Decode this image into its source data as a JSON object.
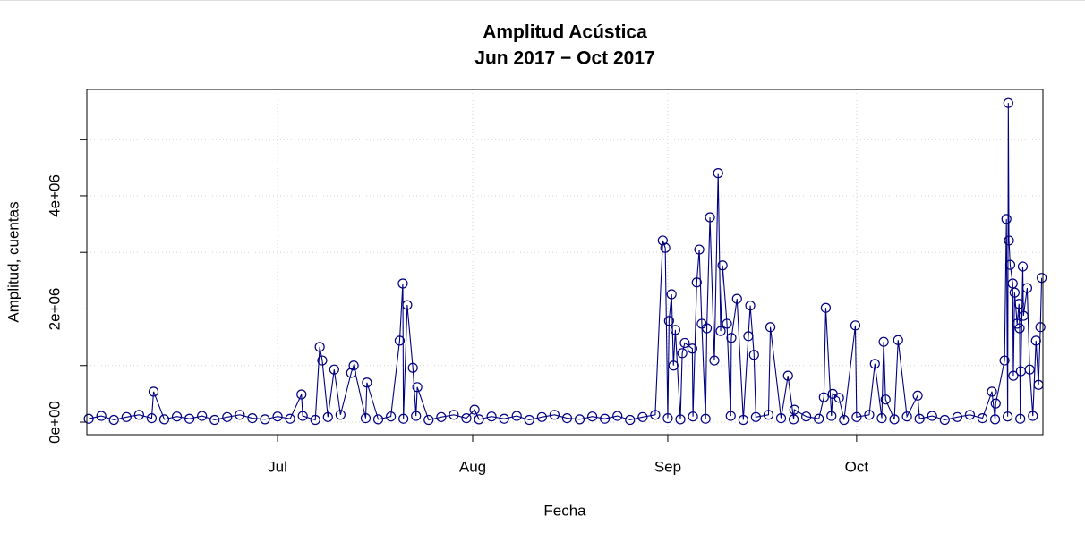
{
  "chart_data": {
    "type": "line",
    "title": "Amplitud Acústica",
    "subtitle": "Jun 2017 − Oct 2017",
    "xlabel": "Fecha",
    "ylabel": "Amplitud, cuentas",
    "color": "#000080",
    "markers": true,
    "grid": true,
    "xlim": [
      -0.3,
      151.6
    ],
    "xticks": [
      {
        "value": 30,
        "label": "Jul"
      },
      {
        "value": 61,
        "label": "Aug"
      },
      {
        "value": 92,
        "label": "Sep"
      },
      {
        "value": 122,
        "label": "Oct"
      }
    ],
    "ylim": [
      -221000,
      5880000
    ],
    "yticks": [
      {
        "value": 0,
        "label": "0e+00"
      },
      {
        "value": 2000000,
        "label": "2e+06"
      },
      {
        "value": 4000000,
        "label": "4e+06"
      }
    ],
    "minor_yticks": [
      1000000,
      3000000,
      5000000
    ],
    "series": [
      {
        "name": "Amplitud",
        "color": "#000080",
        "x": [
          0,
          2,
          4,
          6,
          8,
          10,
          10.3,
          12,
          14,
          16,
          18,
          20,
          22,
          24,
          26,
          28,
          30,
          32,
          33.8,
          34,
          36,
          36.7,
          37.1,
          38,
          39,
          40,
          41.7,
          42.1,
          44,
          44.2,
          46,
          48,
          49.4,
          49.9,
          50,
          50.6,
          51.5,
          52,
          52.2,
          54,
          56,
          58,
          60,
          61.3,
          62,
          64,
          66,
          68,
          70,
          72,
          74,
          76,
          78,
          80,
          82,
          84,
          86,
          88,
          90,
          91.2,
          91.6,
          92,
          92.2,
          92.6,
          92.9,
          93.2,
          94,
          94.3,
          94.7,
          95.9,
          96,
          96.6,
          97,
          97.4,
          98,
          98.2,
          98.7,
          99.4,
          100,
          100.4,
          100.7,
          101.4,
          102,
          102.1,
          103,
          104,
          104.8,
          105.1,
          105.7,
          106,
          108,
          108.3,
          110,
          111.1,
          112,
          112.1,
          114,
          116,
          116.8,
          117.1,
          118,
          118.2,
          119.2,
          120,
          121.8,
          122,
          124,
          124.9,
          126,
          126.3,
          126.6,
          128,
          128.6,
          130,
          131.7,
          132,
          134,
          136,
          138,
          140,
          142,
          143.5,
          144,
          144.1,
          145.5,
          145.8,
          146,
          146.1,
          146.2,
          146.4,
          146.8,
          146.9,
          147.1,
          147.5,
          147.8,
          147.9,
          148,
          148.1,
          148.4,
          148.5,
          149.1,
          149.5,
          150,
          150.5,
          150.9,
          151.2,
          151.4
        ],
        "values": [
          60000,
          110000,
          40000,
          90000,
          130000,
          70000,
          540000,
          50000,
          100000,
          60000,
          110000,
          40000,
          90000,
          130000,
          70000,
          50000,
          100000,
          60000,
          490000,
          110000,
          40000,
          1330000,
          1090000,
          90000,
          930000,
          130000,
          870000,
          1000000,
          70000,
          700000,
          50000,
          100000,
          1440000,
          2450000,
          60000,
          2070000,
          960000,
          110000,
          620000,
          40000,
          90000,
          130000,
          70000,
          220000,
          50000,
          100000,
          60000,
          110000,
          40000,
          90000,
          130000,
          70000,
          50000,
          100000,
          60000,
          110000,
          40000,
          90000,
          130000,
          3210000,
          3080000,
          70000,
          1790000,
          2260000,
          1000000,
          1630000,
          50000,
          1220000,
          1400000,
          1300000,
          100000,
          2470000,
          3050000,
          1740000,
          60000,
          1660000,
          3620000,
          1090000,
          4400000,
          1610000,
          2770000,
          1740000,
          110000,
          1490000,
          2180000,
          40000,
          1520000,
          2060000,
          1190000,
          90000,
          130000,
          1680000,
          70000,
          820000,
          50000,
          220000,
          100000,
          60000,
          440000,
          2020000,
          110000,
          500000,
          430000,
          40000,
          1710000,
          90000,
          130000,
          1030000,
          70000,
          1420000,
          400000,
          50000,
          1450000,
          100000,
          470000,
          60000,
          110000,
          40000,
          90000,
          130000,
          70000,
          540000,
          50000,
          330000,
          1090000,
          3590000,
          100000,
          5640000,
          3210000,
          2780000,
          2450000,
          820000,
          2290000,
          1740000,
          2090000,
          1660000,
          60000,
          900000,
          2750000,
          1880000,
          2370000,
          930000,
          110000,
          1440000,
          660000,
          1680000,
          2550000
        ]
      }
    ]
  }
}
